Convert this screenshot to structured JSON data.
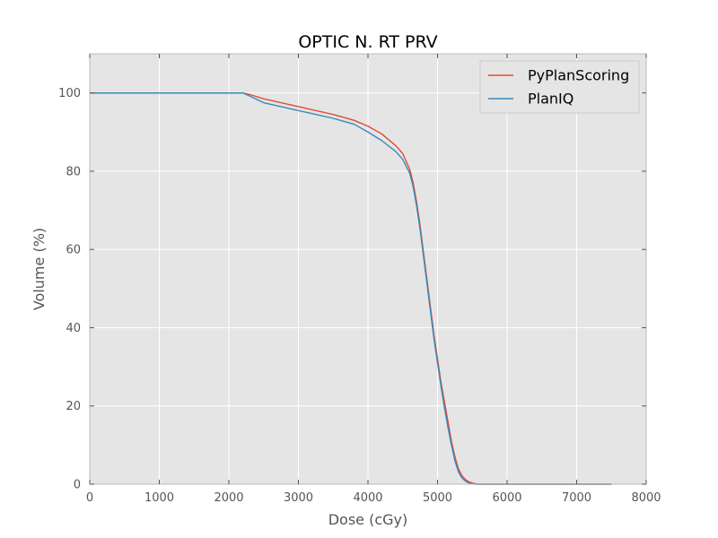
{
  "chart_data": {
    "type": "line",
    "title": "OPTIC N. RT PRV",
    "xlabel": "Dose (cGy)",
    "ylabel": "Volume (%)",
    "xlim": [
      0,
      8000
    ],
    "ylim": [
      0,
      110
    ],
    "xticks": [
      0,
      1000,
      2000,
      3000,
      4000,
      5000,
      6000,
      7000,
      8000
    ],
    "yticks": [
      0,
      20,
      40,
      60,
      80,
      100
    ],
    "grid": true,
    "legend_position": "top-right",
    "background_color": "#e5e5e5",
    "grid_color": "#ffffff",
    "series": [
      {
        "name": "PyPlanScoring",
        "color": "#e24a33",
        "x": [
          0,
          1000,
          2000,
          2200,
          2300,
          2500,
          3000,
          3500,
          3800,
          4000,
          4200,
          4400,
          4500,
          4600,
          4650,
          4700,
          4750,
          4800,
          4850,
          4900,
          4950,
          5000,
          5050,
          5100,
          5150,
          5200,
          5250,
          5300,
          5350,
          5400,
          5450,
          5500,
          5550,
          5600,
          5650,
          5700,
          6000,
          7000,
          7500
        ],
        "y": [
          100,
          100,
          100,
          100,
          99.6,
          98.5,
          96.5,
          94.5,
          93,
          91.5,
          89.5,
          86.5,
          84.5,
          80.5,
          77,
          72,
          66,
          59,
          52,
          45,
          38,
          32,
          26,
          21,
          16,
          11,
          7,
          4,
          2.2,
          1.2,
          0.6,
          0.3,
          0.1,
          0,
          0,
          0,
          0,
          0,
          0
        ]
      },
      {
        "name": "PlanIQ",
        "color": "#348abd",
        "x": [
          0,
          1000,
          2000,
          2200,
          2300,
          2500,
          3000,
          3500,
          3800,
          4000,
          4200,
          4400,
          4500,
          4600,
          4650,
          4700,
          4750,
          4800,
          4850,
          4900,
          4950,
          5000,
          5050,
          5100,
          5150,
          5200,
          5250,
          5300,
          5350,
          5400,
          5450,
          5500,
          5550,
          5600,
          5650,
          5700,
          6000,
          7000,
          7500
        ],
        "y": [
          100,
          100,
          100,
          100,
          99.2,
          97.5,
          95.5,
          93.5,
          92,
          90,
          87.8,
          85,
          83,
          79.5,
          76,
          71,
          65,
          58,
          51,
          44,
          37,
          31,
          25,
          19.5,
          14.5,
          10,
          6,
          3.2,
          1.6,
          0.8,
          0.3,
          0.1,
          0,
          0,
          0,
          0,
          0,
          0,
          0
        ]
      }
    ]
  }
}
